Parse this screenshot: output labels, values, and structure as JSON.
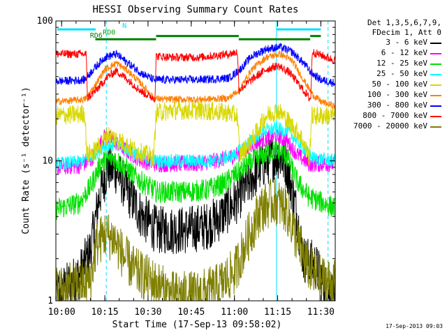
{
  "chart_data": {
    "type": "line",
    "title": "HESSI Observing Summary Count Rates",
    "xlabel": "Start Time (17-Sep-13 09:58:02)",
    "ylabel": "Count Rate (s⁻¹ detector⁻¹)",
    "yscale": "log",
    "ylim": [
      1,
      100
    ],
    "xlim_minutes": [
      0,
      97
    ],
    "x_unit": "minutes after 09:58:02",
    "x_ticks": [
      {
        "label": "10:00",
        "t": 2
      },
      {
        "label": "10:15",
        "t": 17
      },
      {
        "label": "10:30",
        "t": 32
      },
      {
        "label": "10:45",
        "t": 47
      },
      {
        "label": "11:00",
        "t": 62
      },
      {
        "label": "11:15",
        "t": 77
      },
      {
        "label": "11:30",
        "t": 92
      }
    ],
    "y_ticks": [
      {
        "label": "1",
        "v": 1
      },
      {
        "label": "10",
        "v": 10
      },
      {
        "label": "100",
        "v": 100
      }
    ],
    "legend_header": [
      "Det 1,3,5,6,7,9,",
      "FDecim 1, Att 0"
    ],
    "legend_position": "right",
    "series": [
      {
        "name": "3 - 6 keV",
        "color": "#000000",
        "noise": 0.35,
        "points": [
          [
            0,
            1.1
          ],
          [
            8,
            1.5
          ],
          [
            12,
            2.3
          ],
          [
            15,
            5.5
          ],
          [
            18,
            9
          ],
          [
            21,
            8.5
          ],
          [
            25,
            6
          ],
          [
            30,
            4
          ],
          [
            35,
            3.2
          ],
          [
            45,
            3.2
          ],
          [
            52,
            3.4
          ],
          [
            56,
            3.8
          ],
          [
            62,
            5
          ],
          [
            67,
            7
          ],
          [
            72,
            9.5
          ],
          [
            77,
            11
          ],
          [
            80,
            9.5
          ],
          [
            83,
            5
          ],
          [
            86,
            2
          ],
          [
            90,
            1.8
          ],
          [
            94,
            1.2
          ],
          [
            97,
            1.1
          ]
        ]
      },
      {
        "name": "6 - 12 keV",
        "color": "#ff00ff",
        "noise": 0.12,
        "points": [
          [
            0,
            9
          ],
          [
            8,
            9.2
          ],
          [
            12,
            10
          ],
          [
            17,
            15
          ],
          [
            20,
            14
          ],
          [
            24,
            12
          ],
          [
            30,
            10
          ],
          [
            35,
            9.5
          ],
          [
            48,
            9.5
          ],
          [
            55,
            10
          ],
          [
            60,
            10.5
          ],
          [
            66,
            12
          ],
          [
            71,
            14
          ],
          [
            76,
            15
          ],
          [
            80,
            14
          ],
          [
            84,
            11
          ],
          [
            88,
            9.5
          ],
          [
            97,
            9.5
          ]
        ]
      },
      {
        "name": "12 - 25 keV",
        "color": "#00e000",
        "noise": 0.16,
        "points": [
          [
            0,
            4.5
          ],
          [
            8,
            5
          ],
          [
            12,
            6.5
          ],
          [
            16,
            10
          ],
          [
            20,
            10.5
          ],
          [
            24,
            9
          ],
          [
            30,
            7
          ],
          [
            35,
            6
          ],
          [
            45,
            6
          ],
          [
            52,
            6.2
          ],
          [
            58,
            6.8
          ],
          [
            64,
            8.5
          ],
          [
            70,
            10.5
          ],
          [
            76,
            12
          ],
          [
            80,
            11
          ],
          [
            84,
            7
          ],
          [
            88,
            5.5
          ],
          [
            97,
            4.6
          ]
        ]
      },
      {
        "name": "25 - 50 keV",
        "color": "#00ffff",
        "noise": 0.1,
        "points": [
          [
            0,
            9.5
          ],
          [
            8,
            9.8
          ],
          [
            12,
            10.5
          ],
          [
            17,
            13
          ],
          [
            21,
            13
          ],
          [
            25,
            12
          ],
          [
            30,
            10.5
          ],
          [
            35,
            10
          ],
          [
            45,
            10
          ],
          [
            55,
            10
          ],
          [
            62,
            11
          ],
          [
            68,
            14
          ],
          [
            72,
            16.5
          ],
          [
            77,
            17
          ],
          [
            81,
            16
          ],
          [
            85,
            13
          ],
          [
            89,
            10.5
          ],
          [
            97,
            10
          ]
        ]
      },
      {
        "name": "50 - 100 keV",
        "color": "#d8d800",
        "noise": 0.14,
        "points": [
          [
            0,
            21
          ],
          [
            8,
            21.5
          ],
          [
            10,
            22
          ],
          [
            10.8,
            11
          ],
          [
            14,
            12
          ],
          [
            18,
            15.5
          ],
          [
            22,
            14
          ],
          [
            27,
            12
          ],
          [
            32,
            11
          ],
          [
            34,
            10.5
          ],
          [
            34.8,
            22
          ],
          [
            40,
            23
          ],
          [
            50,
            23
          ],
          [
            60,
            22
          ],
          [
            63,
            21
          ],
          [
            63.8,
            11
          ],
          [
            68,
            14
          ],
          [
            73,
            21
          ],
          [
            77,
            23
          ],
          [
            80,
            20
          ],
          [
            85,
            15
          ],
          [
            88,
            10.5
          ],
          [
            88.8,
            21
          ],
          [
            97,
            21
          ]
        ]
      },
      {
        "name": "100 - 300 keV",
        "color": "#ff8000",
        "noise": 0.05,
        "points": [
          [
            0,
            26.5
          ],
          [
            10,
            27.5
          ],
          [
            13,
            33
          ],
          [
            17,
            45
          ],
          [
            21,
            50
          ],
          [
            25,
            44
          ],
          [
            30,
            35
          ],
          [
            34,
            28
          ],
          [
            38,
            27.5
          ],
          [
            50,
            27.5
          ],
          [
            60,
            28
          ],
          [
            64,
            33
          ],
          [
            68,
            45
          ],
          [
            73,
            55
          ],
          [
            78,
            58
          ],
          [
            82,
            52
          ],
          [
            86,
            38
          ],
          [
            89,
            30
          ],
          [
            92,
            26.5
          ],
          [
            97,
            24.5
          ]
        ]
      },
      {
        "name": "300 - 800 keV",
        "color": "#0000ff",
        "noise": 0.06,
        "points": [
          [
            0,
            37
          ],
          [
            10,
            38
          ],
          [
            13,
            45
          ],
          [
            17,
            55
          ],
          [
            21,
            58
          ],
          [
            25,
            50
          ],
          [
            30,
            42
          ],
          [
            34,
            38
          ],
          [
            38,
            38
          ],
          [
            50,
            38
          ],
          [
            60,
            39
          ],
          [
            64,
            45
          ],
          [
            68,
            56
          ],
          [
            73,
            63
          ],
          [
            78,
            65
          ],
          [
            82,
            60
          ],
          [
            86,
            50
          ],
          [
            89,
            42
          ],
          [
            92,
            38
          ],
          [
            97,
            36
          ]
        ]
      },
      {
        "name": "800 - 7000 keV",
        "color": "#ff0000",
        "noise": 0.06,
        "points": [
          [
            0,
            58
          ],
          [
            10,
            58
          ],
          [
            10.5,
            58
          ],
          [
            11,
            28
          ],
          [
            14,
            32
          ],
          [
            18,
            40
          ],
          [
            21,
            44
          ],
          [
            25,
            38
          ],
          [
            30,
            31
          ],
          [
            34,
            28
          ],
          [
            34.4,
            28
          ],
          [
            34.8,
            56
          ],
          [
            40,
            55
          ],
          [
            50,
            55
          ],
          [
            60,
            58
          ],
          [
            63,
            60
          ],
          [
            63.6,
            32
          ],
          [
            68,
            38
          ],
          [
            73,
            45
          ],
          [
            77,
            48
          ],
          [
            81,
            43
          ],
          [
            85,
            34
          ],
          [
            88,
            28
          ],
          [
            88.5,
            28
          ],
          [
            89,
            60
          ],
          [
            93,
            56
          ],
          [
            97,
            52
          ]
        ]
      },
      {
        "name": "7000 - 20000 keV",
        "color": "#7f7f00",
        "noise": 0.35,
        "points": [
          [
            0,
            1.2
          ],
          [
            8,
            1.3
          ],
          [
            12,
            1.4
          ],
          [
            14,
            2.5
          ],
          [
            17,
            3
          ],
          [
            20,
            2.8
          ],
          [
            24,
            2
          ],
          [
            28,
            1.6
          ],
          [
            33,
            1.4
          ],
          [
            40,
            1.1
          ],
          [
            48,
            1.1
          ],
          [
            55,
            1.2
          ],
          [
            62,
            1.6
          ],
          [
            66,
            2.6
          ],
          [
            71,
            4.5
          ],
          [
            76,
            5.2
          ],
          [
            80,
            4.5
          ],
          [
            83,
            3
          ],
          [
            86,
            2
          ],
          [
            90,
            1.5
          ],
          [
            97,
            1.3
          ]
        ]
      }
    ],
    "annotations": [
      {
        "label": "N",
        "color": "#00e0ff",
        "segments": [
          [
            0.5,
            13.8
          ],
          [
            76.6,
            92
          ]
        ],
        "level": 87
      },
      {
        "label": "RD0",
        "color": "#00a000",
        "segments": [
          [
            13.7,
            13.7
          ]
        ],
        "level": 78
      },
      {
        "label": "RD6",
        "color": "#008000",
        "segments": [
          [
            13.7,
            34.8
          ],
          [
            34.8,
            63.5
          ],
          [
            63.5,
            88.3
          ],
          [
            88.3,
            92
          ]
        ],
        "levels": [
          74,
          78,
          74,
          78
        ]
      }
    ],
    "vlines_solid": [
      0,
      76.6
    ],
    "vlines_dashed": [
      17.5,
      94.5
    ],
    "vline_color": "#00e0ff"
  },
  "timestamp": "17-Sep-2013 09:03"
}
